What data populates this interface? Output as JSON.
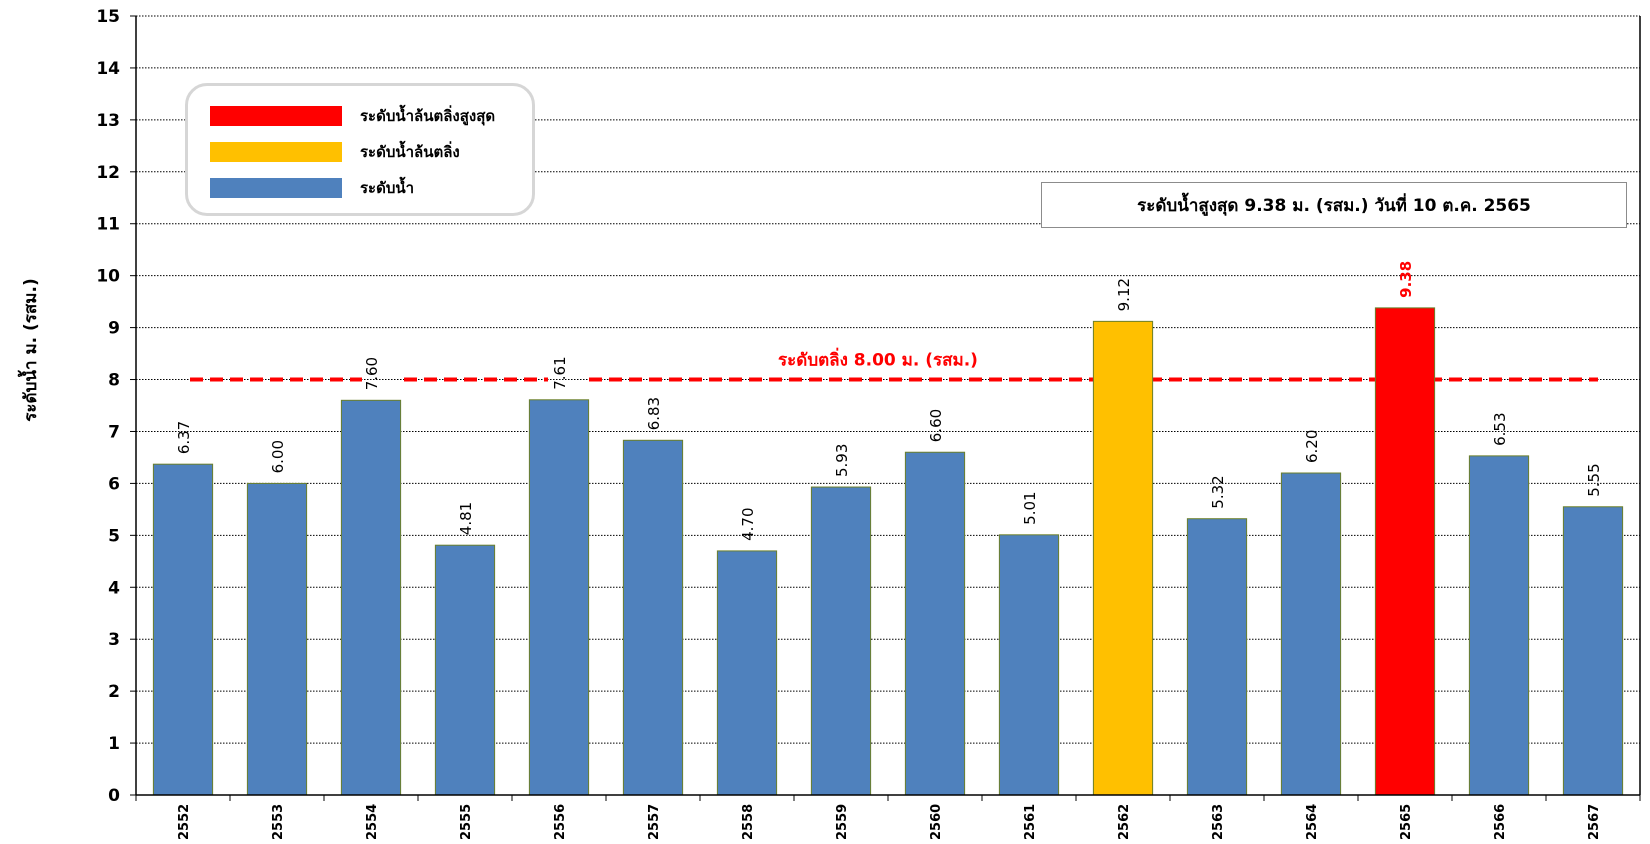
{
  "chart_data": {
    "type": "bar",
    "ylabel": "ระดับน้ำ ม. (รสม.)",
    "ylim": [
      0,
      15
    ],
    "yticks": [
      0,
      1,
      2,
      3,
      4,
      5,
      6,
      7,
      8,
      9,
      10,
      11,
      12,
      13,
      14,
      15
    ],
    "grid": true,
    "categories": [
      "2552",
      "2553",
      "2554",
      "2555",
      "2556",
      "2557",
      "2558",
      "2559",
      "2560",
      "2561",
      "2562",
      "2563",
      "2564",
      "2565",
      "2566",
      "2567"
    ],
    "values": [
      6.37,
      6.0,
      7.6,
      4.81,
      7.61,
      6.83,
      4.7,
      5.93,
      6.6,
      5.01,
      9.12,
      5.32,
      6.2,
      9.38,
      6.53,
      5.55
    ],
    "value_labels": [
      "6.37",
      "6.00",
      "7.60",
      "4.81",
      "7.61",
      "6.83",
      "4.70",
      "5.93",
      "6.60",
      "5.01",
      "9.12",
      "5.32",
      "6.20",
      "9.38",
      "6.53",
      "5.55"
    ],
    "bar_categories": [
      "water",
      "water",
      "water",
      "water",
      "water",
      "water",
      "water",
      "water",
      "water",
      "water",
      "overflow",
      "water",
      "water",
      "max",
      "water",
      "water"
    ],
    "threshold": {
      "value": 8.0,
      "label": "ระดับตลิ่ง 8.00 ม. (รสม.)",
      "color": "#ff0000"
    },
    "legend": {
      "placement": "top-left",
      "items": [
        {
          "key": "max",
          "label": "ระดับน้ำล้นตลิ่งสูงสุด",
          "color": "#ff0000"
        },
        {
          "key": "overflow",
          "label": "ระดับน้ำล้นตลิ่ง",
          "color": "#ffc000"
        },
        {
          "key": "water",
          "label": "ระดับน้ำ",
          "color": "#4f81bd"
        }
      ]
    },
    "annotation": "ระดับน้ำสูงสุด 9.38 ม. (รสม.) วันที่ 10 ต.ค. 2565"
  }
}
